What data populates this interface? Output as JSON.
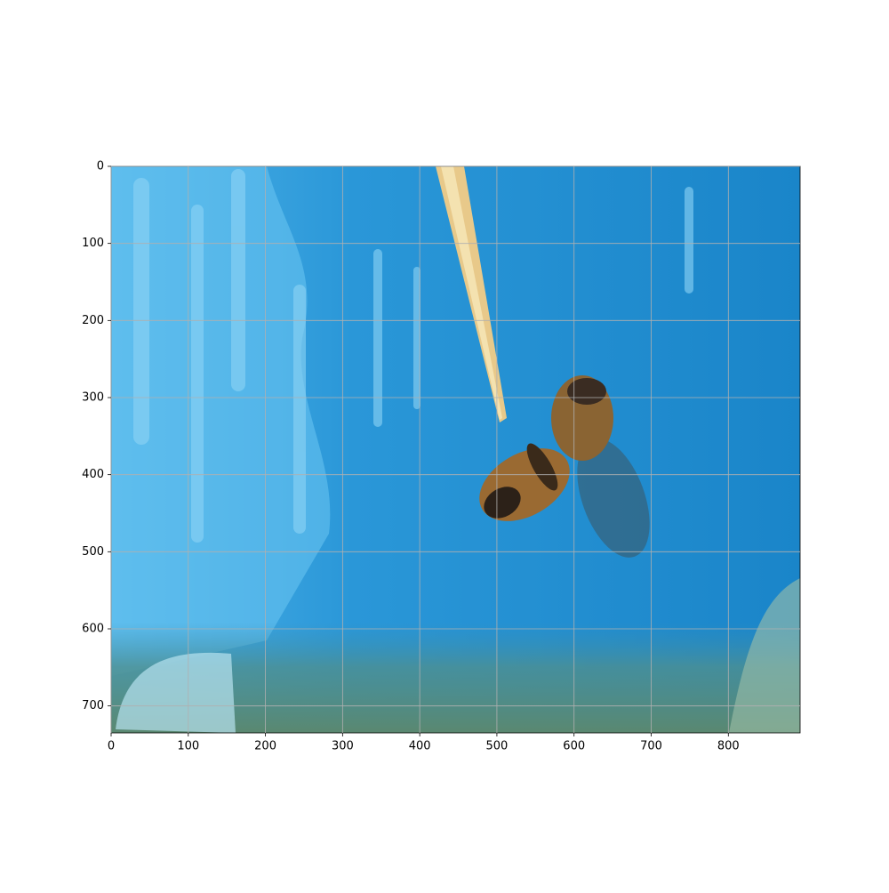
{
  "chart_data": {
    "type": "image",
    "xlim": [
      0,
      893
    ],
    "ylim": [
      735,
      0
    ],
    "xticks": [
      0,
      100,
      200,
      300,
      400,
      500,
      600,
      700,
      800
    ],
    "yticks": [
      0,
      100,
      200,
      300,
      400,
      500,
      600,
      700
    ],
    "grid": true
  }
}
